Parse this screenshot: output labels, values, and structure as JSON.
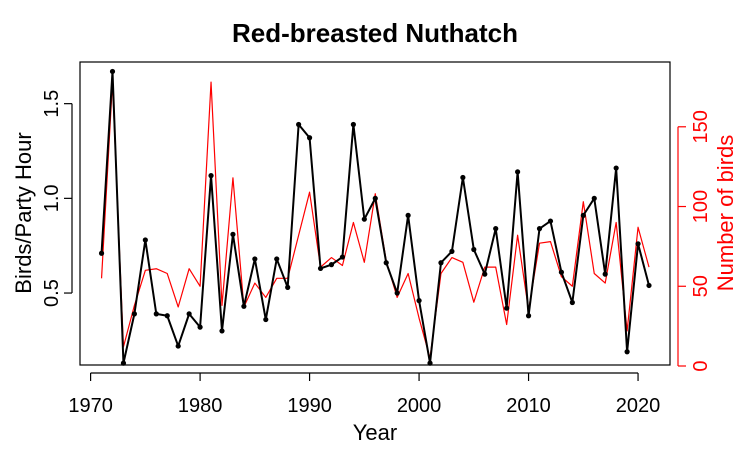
{
  "chart_data": {
    "type": "line",
    "title": "Red-breasted Nuthatch",
    "xlabel": "Year",
    "ylabel": "Birds/Party Hour",
    "y2label": "Number of birds",
    "xlim": [
      1970,
      2023
    ],
    "ylim": [
      0.12,
      1.72
    ],
    "y2lim": [
      0,
      190
    ],
    "x_ticks": [
      1970,
      1980,
      1990,
      2000,
      2010,
      2020
    ],
    "y_ticks": [
      0.5,
      1.0,
      1.5
    ],
    "y_tick_labels": [
      "0.5",
      "1.0",
      "1.5"
    ],
    "y2_ticks": [
      0,
      50,
      100,
      150
    ],
    "y2_tick_labels": [
      "0",
      "50",
      "100",
      "150"
    ],
    "colors": {
      "primary": "#000000",
      "secondary": "#ff0000"
    },
    "grid": false,
    "years": [
      1971,
      1972,
      1973,
      1974,
      1975,
      1976,
      1977,
      1978,
      1979,
      1980,
      1981,
      1982,
      1983,
      1984,
      1985,
      1986,
      1987,
      1988,
      1989,
      1990,
      1991,
      1992,
      1993,
      1994,
      1995,
      1996,
      1997,
      1998,
      1999,
      2000,
      2001,
      2002,
      2003,
      2004,
      2005,
      2006,
      2007,
      2008,
      2009,
      2010,
      2011,
      2012,
      2013,
      2014,
      2015,
      2016,
      2017,
      2018,
      2019,
      2020,
      2021
    ],
    "series": [
      {
        "axis": "left",
        "color": "#000000",
        "markers": true,
        "values": [
          0.71,
          1.67,
          0.13,
          0.39,
          0.78,
          0.39,
          0.38,
          0.22,
          0.39,
          0.32,
          1.12,
          0.3,
          0.81,
          0.43,
          0.68,
          0.36,
          0.68,
          0.53,
          1.39,
          1.32,
          0.63,
          0.65,
          0.69,
          1.39,
          0.89,
          1.0,
          0.66,
          0.5,
          0.91,
          0.46,
          0.13,
          0.66,
          0.72,
          1.11,
          0.73,
          0.6,
          0.84,
          0.42,
          1.14,
          0.38,
          0.84,
          0.88,
          0.61,
          0.45,
          0.91,
          1.0,
          0.6,
          1.16,
          0.19,
          0.76,
          0.54
        ]
      },
      {
        "axis": "right",
        "color": "#ff0000",
        "markers": false,
        "values": [
          55,
          178,
          12,
          38,
          60,
          61,
          58,
          37,
          61,
          50,
          178,
          38,
          118,
          37,
          52,
          43,
          55,
          55,
          82,
          109,
          62,
          68,
          63,
          90,
          65,
          108,
          66,
          43,
          58,
          30,
          5,
          58,
          68,
          65,
          40,
          62,
          62,
          26,
          82,
          35,
          77,
          78,
          56,
          50,
          103,
          58,
          52,
          90,
          22,
          87,
          62
        ]
      }
    ]
  }
}
